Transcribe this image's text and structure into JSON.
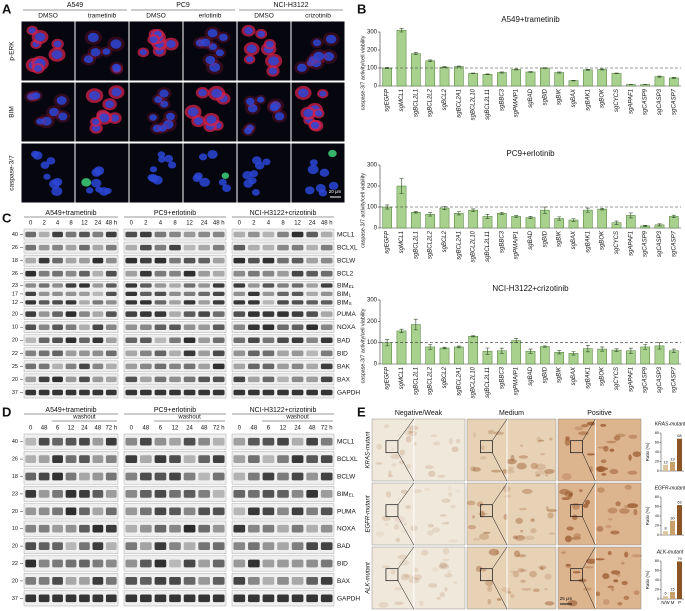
{
  "panel_labels": [
    "A",
    "B",
    "C",
    "D",
    "E"
  ],
  "panel_a": {
    "groups": [
      {
        "cell_line": "A549",
        "conditions": [
          "DMSO",
          "trametinib"
        ]
      },
      {
        "cell_line": "PC9",
        "conditions": [
          "DMSO",
          "erlotinib"
        ]
      },
      {
        "cell_line": "NCI-H3122",
        "conditions": [
          "DMSO",
          "crizotinib"
        ]
      }
    ],
    "rows": [
      "p-ERK",
      "BIM",
      "caspase-3/7"
    ],
    "scale_bar": "20 μm"
  },
  "panel_c": {
    "groups": [
      "A549+trametinib",
      "PC9+erlotinib",
      "NCI-H3122+crizotinib"
    ],
    "times": [
      "0",
      "2",
      "4",
      "8",
      "12",
      "24",
      "48 h"
    ],
    "rows": [
      {
        "label": "MCL1",
        "mw": [
          40
        ]
      },
      {
        "label": "BCLXL",
        "mw": [
          26
        ]
      },
      {
        "label": "BCLW",
        "mw": [
          18
        ]
      },
      {
        "label": "BCL2",
        "mw": [
          26
        ]
      },
      {
        "label": "BIM",
        "sub": [
          "EL",
          "L",
          "S"
        ],
        "mw": [
          23,
          17,
          12
        ]
      },
      {
        "label": "PUMA",
        "mw": [
          20
        ]
      },
      {
        "label": "NOXA",
        "mw": [
          10
        ]
      },
      {
        "label": "BAD",
        "mw": [
          20
        ]
      },
      {
        "label": "BID",
        "mw": [
          22
        ]
      },
      {
        "label": "BAK",
        "mw": [
          25
        ]
      },
      {
        "label": "BAX",
        "mw": [
          20
        ]
      },
      {
        "label": "GAPDH",
        "mw": [
          37
        ]
      }
    ]
  },
  "panel_d": {
    "groups": [
      "A549+trametinib",
      "PC9+erlotinib",
      "NCI-H3122+crizotinib"
    ],
    "washout": "washout",
    "times": [
      "0",
      "48",
      "6",
      "12",
      "24",
      "48",
      "72 h"
    ],
    "rows": [
      {
        "label": "MCL1",
        "mw": [
          40
        ]
      },
      {
        "label": "BCLXL",
        "mw": [
          26
        ]
      },
      {
        "label": "BCLW",
        "mw": [
          18
        ]
      },
      {
        "label": "BIM",
        "sub": [
          "EL"
        ],
        "mw": [
          23
        ]
      },
      {
        "label": "PUMA",
        "mw": [
          20
        ]
      },
      {
        "label": "NOXA",
        "mw": [
          10
        ]
      },
      {
        "label": "BAD",
        "mw": [
          20
        ]
      },
      {
        "label": "BID",
        "mw": [
          22
        ]
      },
      {
        "label": "BAX",
        "mw": [
          20
        ]
      },
      {
        "label": "GAPDH",
        "mw": [
          37
        ]
      }
    ]
  },
  "panel_e": {
    "columns": [
      "Negative/Weak",
      "Medium",
      "Positive"
    ],
    "rows": [
      "KRAS-mutant",
      "EGFR-mutant",
      "ALK-mutant"
    ],
    "scale_bar": "25 μm"
  },
  "chart_data": [
    {
      "type": "bar",
      "title": "A549+trametinib",
      "y_label": "caspase-3/7 activity/cell viability",
      "categories": [
        "sgEGFP",
        "sgMCL1",
        "sgBCL2L1",
        "sgBCL2L2",
        "sgBCL2",
        "sgBCL2A1",
        "sgBCL2L10",
        "sgBCL2L11",
        "sgBBC3",
        "sgPMAIP1",
        "sgBAD",
        "sgBID",
        "sgBIK",
        "sgBAX",
        "sgBAK1",
        "sgBOK",
        "sgCYCS",
        "sgAPAF1",
        "sgCASP9",
        "sgCASP3",
        "sgCASP7"
      ],
      "values": [
        100,
        310,
        180,
        140,
        105,
        108,
        70,
        65,
        75,
        92,
        78,
        100,
        75,
        30,
        90,
        92,
        70,
        8,
        8,
        52,
        45
      ],
      "errors": [
        3,
        10,
        6,
        5,
        3,
        3,
        2,
        2,
        3,
        3,
        2,
        2,
        3,
        2,
        3,
        3,
        2,
        1,
        1,
        3,
        3
      ],
      "color": "#a9d18e",
      "edge_color": "#4f7a3a",
      "ylim": [
        0,
        300
      ],
      "yticks": [
        0,
        100,
        200,
        300
      ],
      "reference_line": 100
    },
    {
      "type": "bar",
      "title": "PC9+erlotinib",
      "y_label": "caspase-3/7 activity/cell viability",
      "categories": [
        "sgEGFP",
        "sgMCL1",
        "sgBCL2L1",
        "sgBCL2L2",
        "sgBCL2",
        "sgBCL2A1",
        "sgBCL2L10",
        "sgBCL2L11",
        "sgBBC3",
        "sgPMAIP1",
        "sgBAD",
        "sgBID",
        "sgBIK",
        "sgBAX",
        "sgBAK1",
        "sgBOK",
        "sgCYCS",
        "sgAPAF1",
        "sgCASP9",
        "sgCASP3",
        "sgCASP7"
      ],
      "values": [
        100,
        200,
        75,
        65,
        95,
        70,
        85,
        55,
        70,
        55,
        50,
        85,
        45,
        38,
        85,
        90,
        25,
        60,
        10,
        15,
        55
      ],
      "errors": [
        10,
        35,
        4,
        8,
        8,
        8,
        6,
        10,
        5,
        5,
        5,
        15,
        8,
        6,
        10,
        4,
        8,
        12,
        3,
        5,
        6
      ],
      "color": "#a9d18e",
      "edge_color": "#4f7a3a",
      "ylim": [
        0,
        300
      ],
      "yticks": [
        0,
        100,
        200,
        300
      ],
      "reference_line": 100
    },
    {
      "type": "bar",
      "title": "NCI-H3122+crizotinib",
      "y_label": "caspase-3/7 activity/cell viability",
      "categories": [
        "sgEGFP",
        "sgMCL1",
        "sgBCL2L1",
        "sgBCL2L2",
        "sgBCL2",
        "sgBCL2A1",
        "sgBCL2L10",
        "sgBCL2L11",
        "sgBBC3",
        "sgPMAIP1",
        "sgBAD",
        "sgBID",
        "sgBIK",
        "sgBAX",
        "sgBAK1",
        "sgBOK",
        "sgCYCS",
        "sgAPAF1",
        "sgCASP9",
        "sgCASP3",
        "sgCASP7"
      ],
      "values": [
        100,
        155,
        185,
        80,
        75,
        80,
        130,
        60,
        62,
        110,
        60,
        82,
        55,
        50,
        72,
        70,
        65,
        62,
        80,
        85,
        62
      ],
      "errors": [
        15,
        8,
        25,
        12,
        4,
        4,
        3,
        15,
        12,
        10,
        10,
        3,
        8,
        8,
        15,
        10,
        6,
        12,
        12,
        15,
        8
      ],
      "color": "#a9d18e",
      "edge_color": "#4f7a3a",
      "ylim": [
        0,
        300
      ],
      "yticks": [
        0,
        100,
        200,
        300
      ],
      "reference_line": 100
    },
    {
      "type": "minibar",
      "title": "KRAS-mutant",
      "y_label": "Ratio (%)",
      "values": [
        13,
        19,
        68
      ],
      "colors": [
        "#dcc59c",
        "#c8a06a",
        "#8a5424"
      ],
      "ylim": [
        0,
        80
      ],
      "yticks": [
        0,
        20,
        40,
        60,
        80
      ]
    },
    {
      "type": "minibar",
      "title": "EGFR-mutant",
      "y_label": "Ratio (%)",
      "values": [
        8,
        30,
        63
      ],
      "colors": [
        "#dcc59c",
        "#c8a06a",
        "#8a5424"
      ],
      "ylim": [
        0,
        80
      ],
      "yticks": [
        0,
        20,
        40,
        60,
        80
      ]
    },
    {
      "type": "minibar",
      "title": "ALK-mutant",
      "y_label": "Ratio (%)",
      "categories": [
        "N/W",
        "M",
        "P"
      ],
      "values": [
        6,
        15,
        79
      ],
      "colors": [
        "#dcc59c",
        "#c8a06a",
        "#8a5424"
      ],
      "ylim": [
        0,
        80
      ],
      "yticks": [
        0,
        20,
        40,
        60,
        80
      ]
    }
  ]
}
